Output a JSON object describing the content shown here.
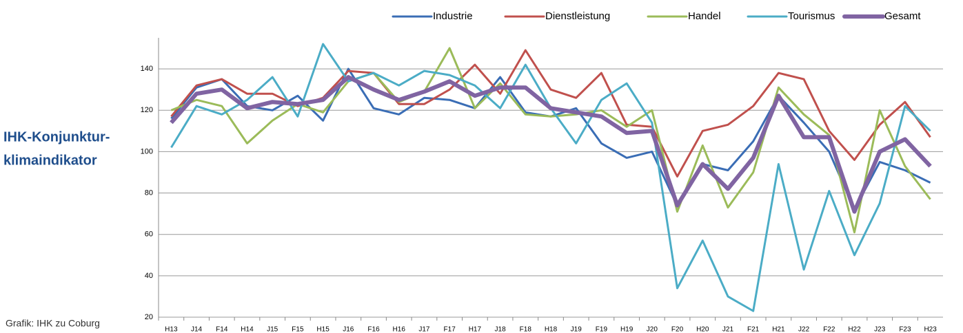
{
  "chart_data": {
    "type": "line",
    "title_lines": [
      "IHK-Konjunktur-",
      "klimaindikator"
    ],
    "source": "Grafik: IHK zu Coburg",
    "categories": [
      "H13",
      "J14",
      "F14",
      "H14",
      "J15",
      "F15",
      "H15",
      "J16",
      "F16",
      "H16",
      "J17",
      "F17",
      "H17",
      "J18",
      "F18",
      "H18",
      "J19",
      "F19",
      "H19",
      "J20",
      "F20",
      "H20",
      "J21",
      "F21",
      "H21",
      "J22",
      "F22",
      "H22",
      "J23",
      "F23",
      "H23"
    ],
    "series": [
      {
        "name": "Industrie",
        "color": "#3a6db5",
        "width": 3,
        "values": [
          116,
          131,
          135,
          122,
          120,
          127,
          115,
          140,
          121,
          118,
          126,
          125,
          121,
          136,
          119,
          117,
          121,
          104,
          97,
          100,
          74,
          94,
          91,
          105,
          127,
          114,
          100,
          72,
          95,
          91,
          85
        ]
      },
      {
        "name": "Dienstleistung",
        "color": "#c0504d",
        "width": 3,
        "values": [
          117,
          132,
          135,
          128,
          128,
          122,
          126,
          139,
          138,
          123,
          123,
          130,
          142,
          128,
          149,
          130,
          126,
          138,
          113,
          112,
          88,
          110,
          113,
          122,
          138,
          135,
          110,
          96,
          113,
          124,
          107
        ]
      },
      {
        "name": "Handel",
        "color": "#9bbb59",
        "width": 3,
        "values": [
          120,
          125,
          122,
          104,
          115,
          123,
          119,
          134,
          138,
          124,
          129,
          150,
          121,
          133,
          118,
          117,
          118,
          120,
          112,
          120,
          71,
          103,
          73,
          90,
          131,
          118,
          108,
          61,
          120,
          93,
          77
        ]
      },
      {
        "name": "Tourismus",
        "color": "#4bacc6",
        "width": 3,
        "values": [
          102,
          122,
          118,
          125,
          136,
          117,
          152,
          134,
          138,
          132,
          139,
          137,
          132,
          121,
          142,
          121,
          104,
          125,
          133,
          114,
          34,
          57,
          30,
          23,
          94,
          43,
          81,
          50,
          75,
          122,
          110
        ]
      },
      {
        "name": "Gesamt",
        "color": "#8064a2",
        "width": 6,
        "values": [
          114,
          128,
          130,
          121,
          124,
          123,
          125,
          136,
          130,
          125,
          129,
          134,
          127,
          131,
          131,
          121,
          119,
          117,
          109,
          110,
          74,
          94,
          82,
          97,
          127,
          107,
          107,
          71,
          100,
          106,
          93
        ]
      }
    ],
    "ylim": [
      20,
      155
    ],
    "yticks": [
      20,
      40,
      60,
      80,
      100,
      120,
      140
    ],
    "grid": true,
    "legend": "top"
  }
}
